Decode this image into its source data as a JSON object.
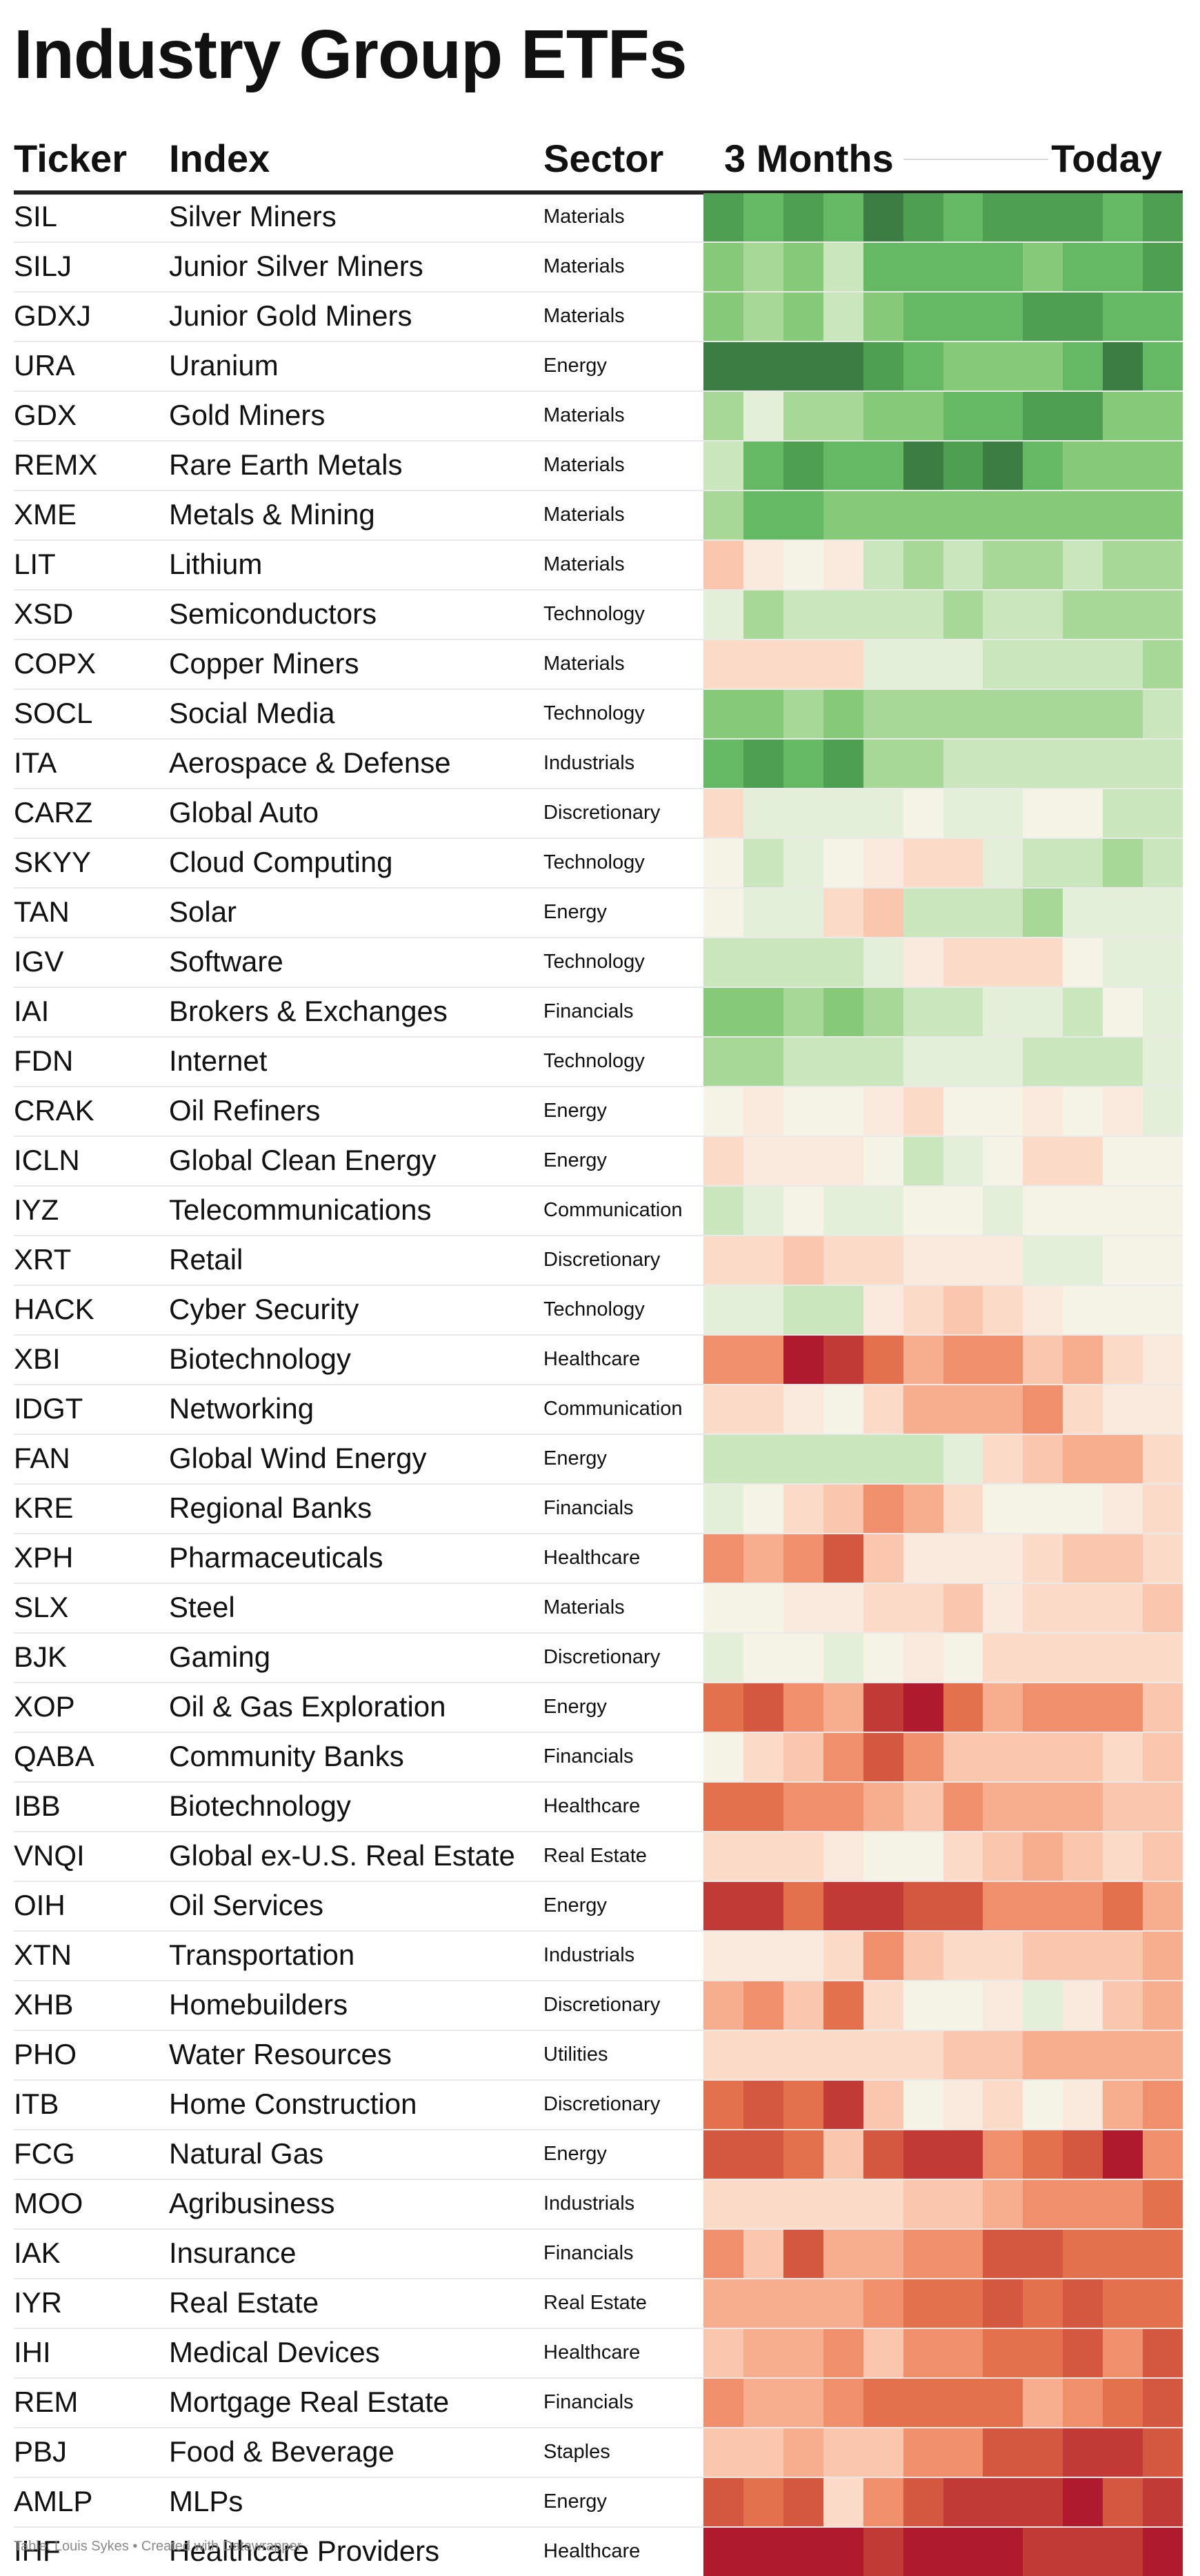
{
  "title": "Industry Group ETFs",
  "headers": {
    "ticker": "Ticker",
    "index": "Index",
    "sector": "Sector",
    "start": "3 Months",
    "end": "Today"
  },
  "footer": "Table: Louis Sykes • Created with Datawrapper",
  "colors": {
    "scale": [
      "#b01a2e",
      "#c23a35",
      "#d4573f",
      "#e3714e",
      "#ef8f6c",
      "#f6ae8f",
      "#fac7ae",
      "#fbdac8",
      "#faeadd",
      "#f5f2e6",
      "#e4efd9",
      "#c9e6bc",
      "#a7d897",
      "#86c979",
      "#66b964",
      "#4e9f52",
      "#3b7d42"
    ]
  },
  "chart_data": {
    "type": "heatmap",
    "title": "Industry Group ETFs",
    "columns": [
      "Ticker",
      "Index",
      "Sector",
      "3 Months",
      "Today"
    ],
    "value_scale": {
      "min": -8,
      "max": 8,
      "description": "diverging: red = negative, cream = neutral, green = positive"
    },
    "time_columns": 12,
    "rows": [
      {
        "ticker": "SIL",
        "index": "Silver Miners",
        "sector": "Materials",
        "values": [
          7,
          6,
          7,
          6,
          8,
          7,
          6,
          7,
          7,
          7,
          6,
          7
        ]
      },
      {
        "ticker": "SILJ",
        "index": "Junior Silver Miners",
        "sector": "Materials",
        "values": [
          5,
          4,
          5,
          3,
          6,
          6,
          6,
          6,
          5,
          6,
          6,
          7
        ]
      },
      {
        "ticker": "GDXJ",
        "index": "Junior Gold Miners",
        "sector": "Materials",
        "values": [
          5,
          4,
          5,
          3,
          5,
          6,
          6,
          6,
          7,
          7,
          6,
          6
        ]
      },
      {
        "ticker": "URA",
        "index": "Uranium",
        "sector": "Energy",
        "values": [
          8,
          8,
          8,
          8,
          7,
          6,
          5,
          5,
          5,
          6,
          8,
          6
        ]
      },
      {
        "ticker": "GDX",
        "index": "Gold Miners",
        "sector": "Materials",
        "values": [
          4,
          2,
          4,
          4,
          5,
          5,
          6,
          6,
          7,
          7,
          5,
          5
        ]
      },
      {
        "ticker": "REMX",
        "index": "Rare Earth Metals",
        "sector": "Materials",
        "values": [
          3,
          6,
          7,
          6,
          6,
          8,
          7,
          8,
          6,
          5,
          5,
          5
        ]
      },
      {
        "ticker": "XME",
        "index": "Metals & Mining",
        "sector": "Materials",
        "values": [
          4,
          6,
          6,
          5,
          5,
          5,
          5,
          5,
          5,
          5,
          5,
          5
        ]
      },
      {
        "ticker": "LIT",
        "index": "Lithium",
        "sector": "Materials",
        "values": [
          -2,
          0,
          1,
          0,
          3,
          4,
          3,
          4,
          4,
          3,
          4,
          4
        ]
      },
      {
        "ticker": "XSD",
        "index": "Semiconductors",
        "sector": "Technology",
        "values": [
          2,
          4,
          3,
          3,
          3,
          3,
          4,
          3,
          3,
          4,
          4,
          4
        ]
      },
      {
        "ticker": "COPX",
        "index": "Copper Miners",
        "sector": "Materials",
        "values": [
          -1,
          -1,
          -1,
          -1,
          2,
          2,
          2,
          3,
          3,
          3,
          3,
          4
        ]
      },
      {
        "ticker": "SOCL",
        "index": "Social Media",
        "sector": "Technology",
        "values": [
          5,
          5,
          4,
          5,
          4,
          4,
          4,
          4,
          4,
          4,
          4,
          3
        ]
      },
      {
        "ticker": "ITA",
        "index": "Aerospace & Defense",
        "sector": "Industrials",
        "values": [
          6,
          7,
          6,
          7,
          4,
          4,
          3,
          3,
          3,
          3,
          3,
          3
        ]
      },
      {
        "ticker": "CARZ",
        "index": "Global Auto",
        "sector": "Discretionary",
        "values": [
          -1,
          2,
          2,
          2,
          2,
          1,
          2,
          2,
          1,
          1,
          3,
          3
        ]
      },
      {
        "ticker": "SKYY",
        "index": "Cloud Computing",
        "sector": "Technology",
        "values": [
          1,
          3,
          2,
          1,
          0,
          -1,
          -1,
          2,
          3,
          3,
          4,
          3
        ]
      },
      {
        "ticker": "TAN",
        "index": "Solar",
        "sector": "Energy",
        "values": [
          1,
          2,
          2,
          -1,
          -2,
          3,
          3,
          3,
          4,
          2,
          2,
          2
        ]
      },
      {
        "ticker": "IGV",
        "index": "Software",
        "sector": "Technology",
        "values": [
          3,
          3,
          3,
          3,
          2,
          0,
          -1,
          -1,
          -1,
          1,
          2,
          2
        ]
      },
      {
        "ticker": "IAI",
        "index": "Brokers & Exchanges",
        "sector": "Financials",
        "values": [
          5,
          5,
          4,
          5,
          4,
          3,
          3,
          2,
          2,
          3,
          1,
          2
        ]
      },
      {
        "ticker": "FDN",
        "index": "Internet",
        "sector": "Technology",
        "values": [
          4,
          4,
          3,
          3,
          3,
          2,
          2,
          2,
          3,
          3,
          3,
          2
        ]
      },
      {
        "ticker": "CRAK",
        "index": "Oil Refiners",
        "sector": "Energy",
        "values": [
          1,
          0,
          1,
          1,
          0,
          -1,
          1,
          1,
          0,
          1,
          0,
          2
        ]
      },
      {
        "ticker": "ICLN",
        "index": "Global Clean Energy",
        "sector": "Energy",
        "values": [
          -1,
          0,
          0,
          0,
          1,
          3,
          2,
          1,
          -1,
          -1,
          1,
          1
        ]
      },
      {
        "ticker": "IYZ",
        "index": "Telecommunications",
        "sector": "Communication",
        "values": [
          3,
          2,
          1,
          2,
          2,
          1,
          1,
          2,
          1,
          1,
          1,
          1
        ]
      },
      {
        "ticker": "XRT",
        "index": "Retail",
        "sector": "Discretionary",
        "values": [
          -1,
          -1,
          -2,
          -1,
          -1,
          0,
          0,
          0,
          2,
          2,
          1,
          1
        ]
      },
      {
        "ticker": "HACK",
        "index": "Cyber Security",
        "sector": "Technology",
        "values": [
          2,
          2,
          3,
          3,
          0,
          -1,
          -2,
          -1,
          0,
          1,
          1,
          1
        ]
      },
      {
        "ticker": "XBI",
        "index": "Biotechnology",
        "sector": "Healthcare",
        "values": [
          -4,
          -4,
          -8,
          -7,
          -5,
          -3,
          -4,
          -4,
          -2,
          -3,
          -1,
          0
        ]
      },
      {
        "ticker": "IDGT",
        "index": "Networking",
        "sector": "Communication",
        "values": [
          -1,
          -1,
          0,
          1,
          -1,
          -3,
          -3,
          -3,
          -4,
          -1,
          0,
          0
        ]
      },
      {
        "ticker": "FAN",
        "index": "Global Wind Energy",
        "sector": "Energy",
        "values": [
          3,
          3,
          3,
          3,
          3,
          3,
          2,
          -1,
          -2,
          -3,
          -3,
          -1
        ]
      },
      {
        "ticker": "KRE",
        "index": "Regional Banks",
        "sector": "Financials",
        "values": [
          2,
          1,
          -1,
          -2,
          -4,
          -3,
          -1,
          1,
          1,
          1,
          0,
          -1
        ]
      },
      {
        "ticker": "XPH",
        "index": "Pharmaceuticals",
        "sector": "Healthcare",
        "values": [
          -4,
          -3,
          -4,
          -6,
          -2,
          0,
          0,
          0,
          -1,
          -2,
          -2,
          -1
        ]
      },
      {
        "ticker": "SLX",
        "index": "Steel",
        "sector": "Materials",
        "values": [
          1,
          1,
          0,
          0,
          -1,
          -1,
          -2,
          0,
          -1,
          -1,
          -1,
          -2
        ]
      },
      {
        "ticker": "BJK",
        "index": "Gaming",
        "sector": "Discretionary",
        "values": [
          2,
          1,
          1,
          2,
          1,
          0,
          1,
          -1,
          -1,
          -1,
          -1,
          -1
        ]
      },
      {
        "ticker": "XOP",
        "index": "Oil & Gas Exploration",
        "sector": "Energy",
        "values": [
          -5,
          -6,
          -4,
          -3,
          -7,
          -8,
          -5,
          -3,
          -4,
          -4,
          -4,
          -2
        ]
      },
      {
        "ticker": "QABA",
        "index": "Community Banks",
        "sector": "Financials",
        "values": [
          1,
          -1,
          -2,
          -4,
          -6,
          -4,
          -2,
          -2,
          -2,
          -2,
          -1,
          -2
        ]
      },
      {
        "ticker": "IBB",
        "index": "Biotechnology",
        "sector": "Healthcare",
        "values": [
          -5,
          -5,
          -4,
          -4,
          -3,
          -2,
          -4,
          -3,
          -3,
          -3,
          -2,
          -2
        ]
      },
      {
        "ticker": "VNQI",
        "index": "Global ex-U.S. Real Estate",
        "sector": "Real Estate",
        "values": [
          -1,
          -1,
          -1,
          0,
          1,
          1,
          -1,
          -2,
          -3,
          -2,
          -1,
          -2
        ]
      },
      {
        "ticker": "OIH",
        "index": "Oil Services",
        "sector": "Energy",
        "values": [
          -7,
          -7,
          -5,
          -7,
          -7,
          -6,
          -6,
          -4,
          -4,
          -4,
          -5,
          -3
        ]
      },
      {
        "ticker": "XTN",
        "index": "Transportation",
        "sector": "Industrials",
        "values": [
          0,
          0,
          0,
          -1,
          -4,
          -2,
          -1,
          -1,
          -2,
          -2,
          -2,
          -3
        ]
      },
      {
        "ticker": "XHB",
        "index": "Homebuilders",
        "sector": "Discretionary",
        "values": [
          -3,
          -4,
          -2,
          -5,
          -1,
          1,
          1,
          0,
          2,
          0,
          -2,
          -3
        ]
      },
      {
        "ticker": "PHO",
        "index": "Water Resources",
        "sector": "Utilities",
        "values": [
          -1,
          -1,
          -1,
          -1,
          -1,
          -1,
          -2,
          -2,
          -3,
          -3,
          -3,
          -3
        ]
      },
      {
        "ticker": "ITB",
        "index": "Home Construction",
        "sector": "Discretionary",
        "values": [
          -5,
          -6,
          -5,
          -7,
          -2,
          1,
          0,
          -1,
          1,
          0,
          -3,
          -4
        ]
      },
      {
        "ticker": "FCG",
        "index": "Natural Gas",
        "sector": "Energy",
        "values": [
          -6,
          -6,
          -5,
          -2,
          -6,
          -7,
          -7,
          -4,
          -5,
          -6,
          -8,
          -4
        ]
      },
      {
        "ticker": "MOO",
        "index": "Agribusiness",
        "sector": "Industrials",
        "values": [
          -1,
          -1,
          -1,
          -1,
          -1,
          -2,
          -2,
          -3,
          -4,
          -4,
          -4,
          -5
        ]
      },
      {
        "ticker": "IAK",
        "index": "Insurance",
        "sector": "Financials",
        "values": [
          -4,
          -2,
          -6,
          -3,
          -3,
          -4,
          -4,
          -6,
          -6,
          -5,
          -5,
          -5
        ]
      },
      {
        "ticker": "IYR",
        "index": "Real Estate",
        "sector": "Real Estate",
        "values": [
          -3,
          -3,
          -3,
          -3,
          -4,
          -5,
          -5,
          -6,
          -5,
          -6,
          -5,
          -5
        ]
      },
      {
        "ticker": "IHI",
        "index": "Medical Devices",
        "sector": "Healthcare",
        "values": [
          -2,
          -3,
          -3,
          -4,
          -2,
          -4,
          -4,
          -5,
          -5,
          -6,
          -4,
          -6
        ]
      },
      {
        "ticker": "REM",
        "index": "Mortgage Real Estate",
        "sector": "Financials",
        "values": [
          -4,
          -3,
          -3,
          -4,
          -5,
          -5,
          -5,
          -5,
          -3,
          -4,
          -5,
          -6
        ]
      },
      {
        "ticker": "PBJ",
        "index": "Food & Beverage",
        "sector": "Staples",
        "values": [
          -2,
          -2,
          -3,
          -2,
          -2,
          -4,
          -4,
          -6,
          -6,
          -7,
          -7,
          -6
        ]
      },
      {
        "ticker": "AMLP",
        "index": "MLPs",
        "sector": "Energy",
        "values": [
          -6,
          -5,
          -6,
          -1,
          -4,
          -6,
          -7,
          -7,
          -7,
          -8,
          -6,
          -7
        ]
      },
      {
        "ticker": "IHF",
        "index": "Healthcare Providers",
        "sector": "Healthcare",
        "values": [
          -8,
          -8,
          -8,
          -8,
          -7,
          -8,
          -8,
          -8,
          -7,
          -7,
          -7,
          -8
        ]
      }
    ]
  }
}
